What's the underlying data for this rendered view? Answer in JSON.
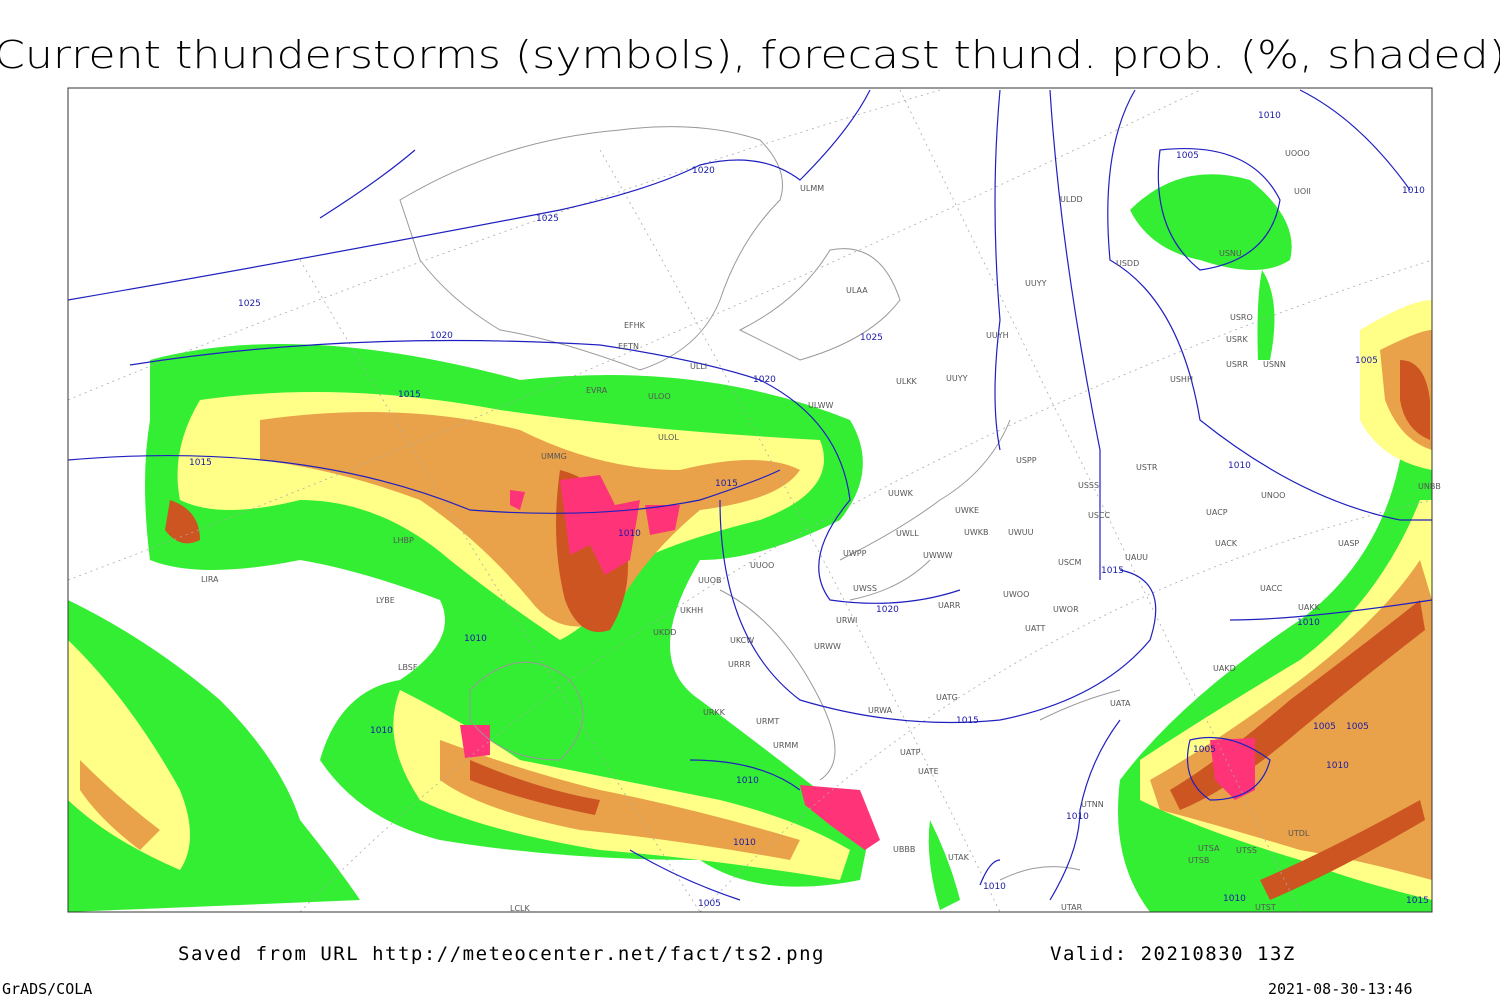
{
  "title": "Current thunderstorms (symbols), forecast thund. prob. (%, shaded)",
  "footer": {
    "source": "Saved from URL http://meteocenter.net/fact/ts2.png",
    "valid": "Valid: 20210830 13Z",
    "software": "GrADS/COLA",
    "timestamp": "2021-08-30-13:46"
  },
  "isobar_labels": [
    1020,
    1025,
    1025,
    1020,
    1015,
    1015,
    1020,
    1015,
    1010,
    1025,
    1020,
    1015,
    1015,
    1010,
    1010,
    1010,
    1010,
    1005,
    1010,
    1010,
    1010,
    1005,
    1010,
    1005,
    1010,
    1010,
    1005,
    1005,
    1005,
    1010,
    1010,
    1015
  ],
  "stations": [
    "ULMM",
    "ULAA",
    "ULDD",
    "UUYY",
    "UUYH",
    "ULKK",
    "UUYY",
    "ULWW",
    "EFHK",
    "EETN",
    "EVRA",
    "ULOO",
    "ULOL",
    "UMMG",
    "UUWK",
    "UWKE",
    "UWKB",
    "UWUU",
    "UWLL",
    "UWPP",
    "UWWW",
    "UUOO",
    "UUOB",
    "UWSS",
    "URWI",
    "UKHH",
    "UKDD",
    "UKCW",
    "URWW",
    "URRR",
    "LYBE",
    "LIRA",
    "LHBP",
    "LBSF",
    "URKK",
    "URMT",
    "URMM",
    "URWA",
    "UATG",
    "UATT",
    "UARR",
    "UWOO",
    "UWOR",
    "USCM",
    "UAUU",
    "USCC",
    "USSS",
    "USPP",
    "USTR",
    "UACP",
    "UACK",
    "UACC",
    "UASP",
    "UAKK",
    "UNOO",
    "UNBB",
    "UAKD",
    "UATA",
    "UATP",
    "UATE",
    "UBBB",
    "UTAK",
    "UTAR",
    "UTNN",
    "UTSA",
    "UTSB",
    "UTSS",
    "UTST",
    "UTDL",
    "LCLK",
    "USHH",
    "USRR",
    "USRO",
    "USRK",
    "USNN",
    "USNU",
    "USDD",
    "UOOO",
    "UOII",
    "ULLI"
  ]
}
